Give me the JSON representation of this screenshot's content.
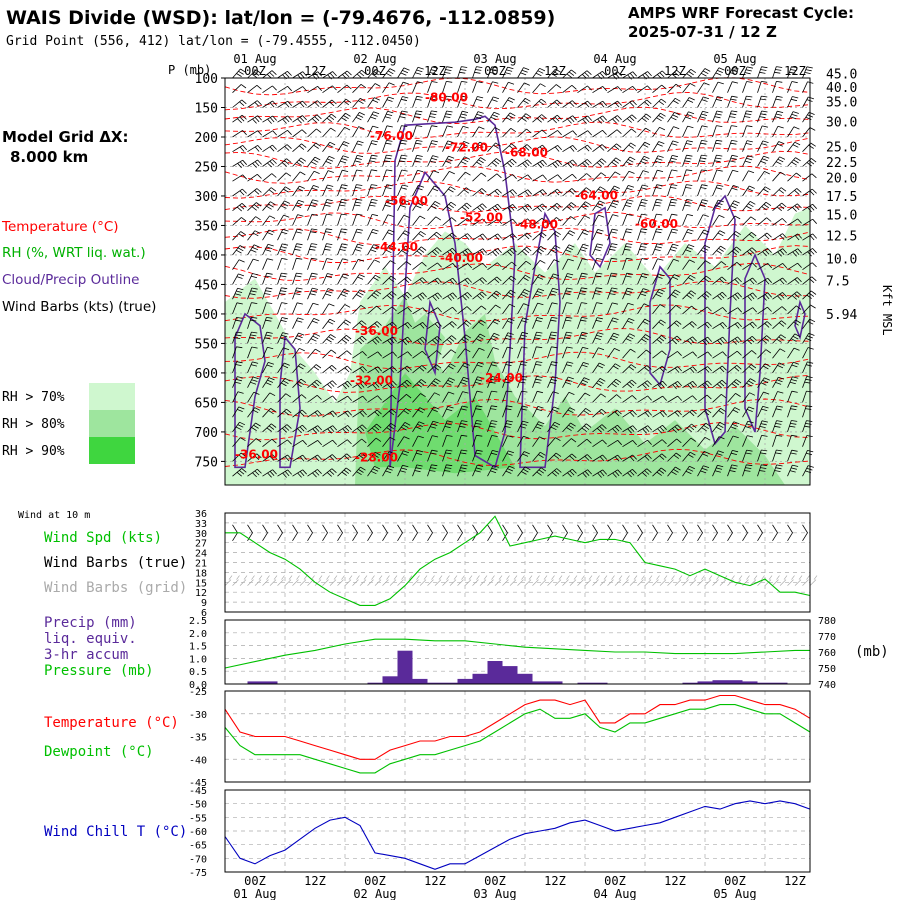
{
  "header": {
    "station": "WAIS Divide (WSD):  lat/lon = (-79.4676, -112.0859)",
    "gridpoint": "Grid Point (556, 412) lat/lon = (-79.4555, -112.0450)",
    "cycle_line1": "AMPS WRF Forecast Cycle:",
    "cycle_line2": "2025-07-31 / 12  Z"
  },
  "legend": {
    "model_grid_line1": "Model Grid ΔX:",
    "model_grid_line2": "8.000 km",
    "temperature": "Temperature (°C)",
    "rh": "RH (%, WRT liq. wat.)",
    "cloud": "Cloud/Precip Outline",
    "wind_barbs": "Wind Barbs (kts) (true)",
    "rh_levels": [
      {
        "label": "RH > 70%",
        "color": "#cff7cf"
      },
      {
        "label": "RH > 80%",
        "color": "#9ee59e"
      },
      {
        "label": "RH > 90%",
        "color": "#3fd63f"
      }
    ]
  },
  "colors": {
    "temperature": "#ff0000",
    "dewpoint": "#00c000",
    "cloud": "#5a2a9a",
    "precip": "#5a2a9a",
    "pressure": "#00c000",
    "windspd": "#00c000",
    "windchill": "#0000c0",
    "grid_barbs": "#aaaaaa"
  },
  "time_axis": {
    "tick_labels": [
      "00Z",
      "12Z",
      "00Z",
      "12Z",
      "00Z",
      "12Z",
      "00Z",
      "12Z",
      "00Z",
      "12Z"
    ],
    "day_labels": [
      "01 Aug",
      "02 Aug",
      "03 Aug",
      "04 Aug",
      "05 Aug"
    ]
  },
  "chart_data": [
    {
      "type": "heatmap",
      "name": "cross-section",
      "ylabel": "P (mb)",
      "y2label": "Kft MSL",
      "y_ticks": [
        100,
        150,
        200,
        250,
        300,
        350,
        400,
        450,
        500,
        550,
        600,
        650,
        700,
        750
      ],
      "y2_ticks": [
        {
          "label": "45.0",
          "p": 92
        },
        {
          "label": "40.0",
          "p": 115
        },
        {
          "label": "35.0",
          "p": 140
        },
        {
          "label": "30.0",
          "p": 174
        },
        {
          "label": "25.0",
          "p": 216
        },
        {
          "label": "22.5",
          "p": 242
        },
        {
          "label": "20.0",
          "p": 269
        },
        {
          "label": "17.5",
          "p": 300
        },
        {
          "label": "15.0",
          "p": 331
        },
        {
          "label": "12.5",
          "p": 367
        },
        {
          "label": "10.0",
          "p": 406
        },
        {
          "label": "7.5",
          "p": 443
        },
        {
          "label": "5.94",
          "p": 500
        }
      ],
      "ylim": [
        100,
        790
      ],
      "temp_labels": [
        {
          "text": "-80.00",
          "t": 40,
          "p": 140
        },
        {
          "text": "-76.00",
          "t": 29,
          "p": 205
        },
        {
          "text": "-72.00",
          "t": 44,
          "p": 225
        },
        {
          "text": "-68.00",
          "t": 56,
          "p": 233
        },
        {
          "text": "-64.00",
          "t": 70,
          "p": 306
        },
        {
          "text": "-60.00",
          "t": 82,
          "p": 354
        },
        {
          "text": "-56.00",
          "t": 32,
          "p": 315
        },
        {
          "text": "-52.00",
          "t": 47,
          "p": 343
        },
        {
          "text": "-48.00",
          "t": 58,
          "p": 355
        },
        {
          "text": "-44.00",
          "t": 30,
          "p": 393
        },
        {
          "text": "-40.00",
          "t": 43,
          "p": 412
        },
        {
          "text": "-36.00",
          "t": 26,
          "p": 536
        },
        {
          "text": "-32.00",
          "t": 25,
          "p": 620
        },
        {
          "text": "-24.00",
          "t": 51,
          "p": 615
        },
        {
          "text": "-36.00",
          "t": 2,
          "p": 745
        },
        {
          "text": "-28.00",
          "t": 26,
          "p": 750
        }
      ]
    },
    {
      "type": "line",
      "name": "surface wind",
      "title": "Wind at 10 m",
      "label": "Wind Spd (kts)",
      "label_barbs_true": "Wind Barbs (true)",
      "label_barbs_grid": "Wind Barbs (grid)",
      "y_ticks": [
        6,
        9,
        12,
        15,
        18,
        21,
        24,
        27,
        30,
        33,
        36
      ],
      "ylim": [
        6,
        36
      ],
      "t": [
        0,
        3,
        6,
        9,
        12,
        15,
        18,
        21,
        24,
        27,
        30,
        33,
        36,
        39,
        42,
        45,
        48,
        51,
        54,
        57,
        60,
        63,
        66,
        69,
        72,
        75,
        78,
        81,
        84,
        87,
        90,
        93,
        96,
        99,
        102,
        105,
        108,
        111,
        114,
        117
      ],
      "values": [
        30,
        30,
        27,
        24,
        22,
        19,
        15,
        12,
        10,
        8,
        8,
        10,
        14,
        19,
        22,
        24,
        27,
        30,
        35,
        26,
        27,
        28,
        29,
        28,
        27,
        28,
        28,
        27,
        21,
        20,
        19,
        17,
        19,
        17,
        15,
        14,
        16,
        12,
        12,
        11
      ]
    },
    {
      "type": "bar",
      "name": "precip and pressure",
      "label_precip": "Precip (mm)",
      "label_equiv": "liq. equiv.",
      "label_accum": "3-hr accum",
      "label_pressure": "Pressure (mb)",
      "y2unit": "(mb)",
      "y_ticks": [
        0.0,
        0.5,
        1.0,
        1.5,
        2.0,
        2.5
      ],
      "ylim": [
        0,
        2.5
      ],
      "y2_ticks": [
        740,
        750,
        760,
        770,
        780
      ],
      "y2lim": [
        740,
        780
      ],
      "precip_t": [
        6,
        9,
        30,
        33,
        36,
        39,
        42,
        45,
        48,
        51,
        54,
        57,
        60,
        63,
        66,
        72,
        75,
        93,
        96,
        99,
        102,
        105,
        108,
        111
      ],
      "precip_values": [
        0.1,
        0.1,
        0.05,
        0.3,
        1.3,
        0.2,
        0.05,
        0.05,
        0.2,
        0.4,
        0.9,
        0.7,
        0.4,
        0.1,
        0.1,
        0.05,
        0.05,
        0.05,
        0.1,
        0.15,
        0.15,
        0.1,
        0.05,
        0.05
      ],
      "pressure_t": [
        0,
        6,
        12,
        18,
        24,
        30,
        36,
        42,
        48,
        54,
        60,
        66,
        72,
        78,
        84,
        90,
        96,
        102,
        108,
        114,
        117
      ],
      "pressure_values": [
        750,
        754,
        758,
        761,
        765,
        768,
        768,
        767,
        767,
        765,
        763,
        762,
        761,
        760,
        760,
        759,
        759,
        759,
        760,
        761,
        761
      ]
    },
    {
      "type": "line",
      "name": "temperature and dewpoint",
      "label_temp": "Temperature (°C)",
      "label_dew": "Dewpoint (°C)",
      "y_ticks": [
        -25,
        -30,
        -35,
        -40,
        -45
      ],
      "ylim": [
        -45,
        -25
      ],
      "t": [
        0,
        3,
        6,
        9,
        12,
        15,
        18,
        21,
        24,
        27,
        30,
        33,
        36,
        39,
        42,
        45,
        48,
        51,
        54,
        57,
        60,
        63,
        66,
        69,
        72,
        75,
        78,
        81,
        84,
        87,
        90,
        93,
        96,
        99,
        102,
        105,
        108,
        111,
        114,
        117
      ],
      "temp_values": [
        -29,
        -34,
        -35,
        -35,
        -35,
        -36,
        -37,
        -38,
        -39,
        -40,
        -40,
        -38,
        -37,
        -36,
        -36,
        -35,
        -35,
        -34,
        -32,
        -30,
        -28,
        -27,
        -27,
        -28,
        -27,
        -32,
        -32,
        -30,
        -30,
        -28,
        -28,
        -27,
        -27,
        -26,
        -26,
        -27,
        -28,
        -28,
        -29,
        -31
      ],
      "dew_values": [
        -33,
        -37,
        -39,
        -39,
        -39,
        -39,
        -40,
        -41,
        -42,
        -43,
        -43,
        -41,
        -40,
        -39,
        -39,
        -38,
        -37,
        -36,
        -34,
        -32,
        -30,
        -29,
        -31,
        -31,
        -30,
        -33,
        -34,
        -32,
        -32,
        -31,
        -30,
        -29,
        -29,
        -28,
        -28,
        -29,
        -30,
        -30,
        -32,
        -34
      ]
    },
    {
      "type": "line",
      "name": "wind chill",
      "label": "Wind Chill T (°C)",
      "y_ticks": [
        -45,
        -50,
        -55,
        -60,
        -65,
        -70,
        -75
      ],
      "ylim": [
        -75,
        -45
      ],
      "t": [
        0,
        3,
        6,
        9,
        12,
        15,
        18,
        21,
        24,
        27,
        30,
        33,
        36,
        39,
        42,
        45,
        48,
        51,
        54,
        57,
        60,
        63,
        66,
        69,
        72,
        75,
        78,
        81,
        84,
        87,
        90,
        93,
        96,
        99,
        102,
        105,
        108,
        111,
        114,
        117
      ],
      "values": [
        -62,
        -70,
        -72,
        -69,
        -67,
        -63,
        -59,
        -56,
        -55,
        -58,
        -68,
        -69,
        -70,
        -72,
        -74,
        -72,
        -72,
        -69,
        -66,
        -63,
        -61,
        -60,
        -59,
        -57,
        -56,
        -58,
        -60,
        -59,
        -58,
        -57,
        -55,
        -53,
        -51,
        -52,
        -50,
        -49,
        -50,
        -49,
        -50,
        -52
      ]
    }
  ]
}
